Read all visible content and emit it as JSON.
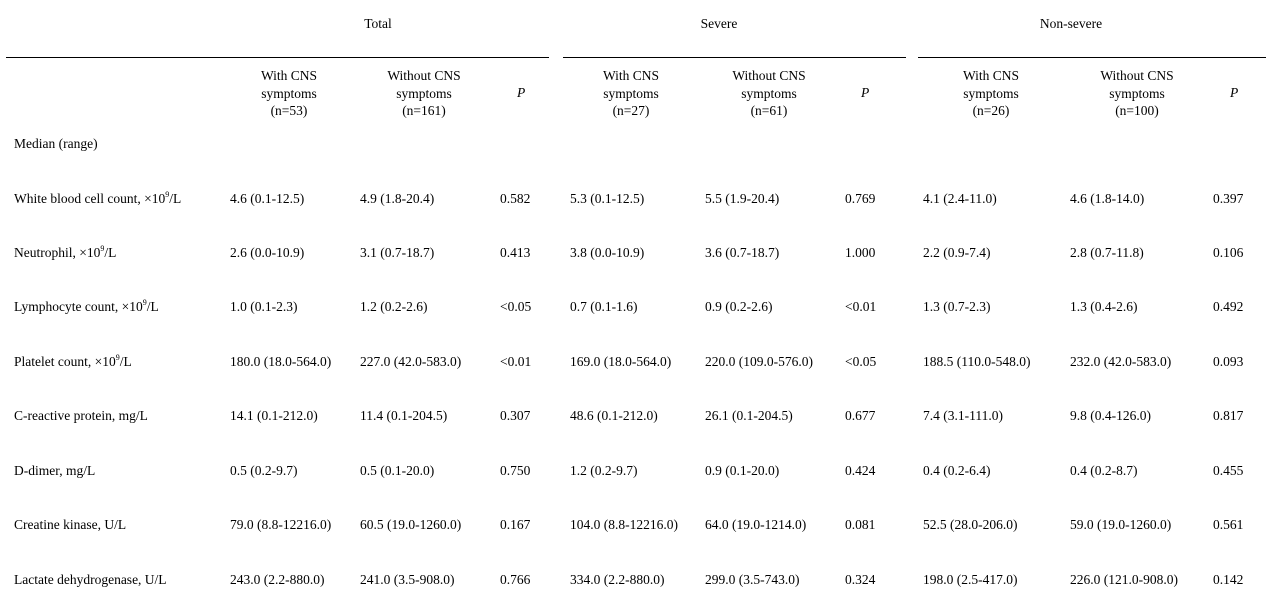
{
  "groups": {
    "total": "Total",
    "severe": "Severe",
    "nonsevere": "Non-severe"
  },
  "subheaders": {
    "with": [
      "With CNS",
      "symptoms"
    ],
    "without": [
      "Without CNS",
      "symptoms"
    ],
    "n_total_with": "(n=53)",
    "n_total_without": "(n=161)",
    "n_severe_with": "(n=27)",
    "n_severe_without": "(n=61)",
    "n_nonsevere_with": "(n=26)",
    "n_nonsevere_without": "(n=100)",
    "p": "P"
  },
  "section_label": "Median (range)",
  "rows": [
    {
      "name": "White blood cell count, ×10",
      "sup": "9",
      "unit": "/L",
      "cells": [
        "4.6 (0.1-12.5)",
        "4.9 (1.8-20.4)",
        "0.582",
        "5.3 (0.1-12.5)",
        "5.5 (1.9-20.4)",
        "0.769",
        "4.1 (2.4-11.0)",
        "4.6 (1.8-14.0)",
        "0.397"
      ]
    },
    {
      "name": "Neutrophil, ×10",
      "sup": "9",
      "unit": "/L",
      "cells": [
        "2.6 (0.0-10.9)",
        "3.1 (0.7-18.7)",
        "0.413",
        "3.8 (0.0-10.9)",
        "3.6 (0.7-18.7)",
        "1.000",
        "2.2 (0.9-7.4)",
        "2.8 (0.7-11.8)",
        "0.106"
      ]
    },
    {
      "name": "Lymphocyte count, ×10",
      "sup": "9",
      "unit": "/L",
      "cells": [
        "1.0 (0.1-2.3)",
        "1.2 (0.2-2.6)",
        "<0.05",
        "0.7 (0.1-1.6)",
        "0.9 (0.2-2.6)",
        "<0.01",
        "1.3 (0.7-2.3)",
        "1.3 (0.4-2.6)",
        "0.492"
      ]
    },
    {
      "name": "Platelet count, ×10",
      "sup": "9",
      "unit": "/L",
      "cells": [
        "180.0 (18.0-564.0)",
        "227.0 (42.0-583.0)",
        "<0.01",
        "169.0 (18.0-564.0)",
        "220.0 (109.0-576.0)",
        "<0.05",
        "188.5 (110.0-548.0)",
        "232.0 (42.0-583.0)",
        "0.093"
      ]
    },
    {
      "name": "C-reactive protein, mg/L",
      "sup": "",
      "unit": "",
      "cells": [
        "14.1 (0.1-212.0)",
        "11.4 (0.1-204.5)",
        "0.307",
        "48.6 (0.1-212.0)",
        "26.1 (0.1-204.5)",
        "0.677",
        "7.4 (3.1-111.0)",
        "9.8 (0.4-126.0)",
        "0.817"
      ]
    },
    {
      "name": "D-dimer, mg/L",
      "sup": "",
      "unit": "",
      "cells": [
        "0.5 (0.2-9.7)",
        "0.5 (0.1-20.0)",
        "0.750",
        "1.2 (0.2-9.7)",
        "0.9 (0.1-20.0)",
        "0.424",
        "0.4 (0.2-6.4)",
        "0.4 (0.2-8.7)",
        "0.455"
      ]
    },
    {
      "name": "Creatine kinase, U/L",
      "sup": "",
      "unit": "",
      "cells": [
        "79.0 (8.8-12216.0)",
        "60.5 (19.0-1260.0)",
        "0.167",
        "104.0 (8.8-12216.0)",
        "64.0 (19.0-1214.0)",
        "0.081",
        "52.5 (28.0-206.0)",
        "59.0 (19.0-1260.0)",
        "0.561"
      ]
    },
    {
      "name": "Lactate dehydrogenase, U/L",
      "sup": "",
      "unit": "",
      "cells": [
        "243.0 (2.2-880.0)",
        "241.0 (3.5-908.0)",
        "0.766",
        "334.0 (2.2-880.0)",
        "299.0 (3.5-743.0)",
        "0.324",
        "198.0 (2.5-417.0)",
        "226.0 (121.0-908.0)",
        "0.142"
      ]
    }
  ]
}
